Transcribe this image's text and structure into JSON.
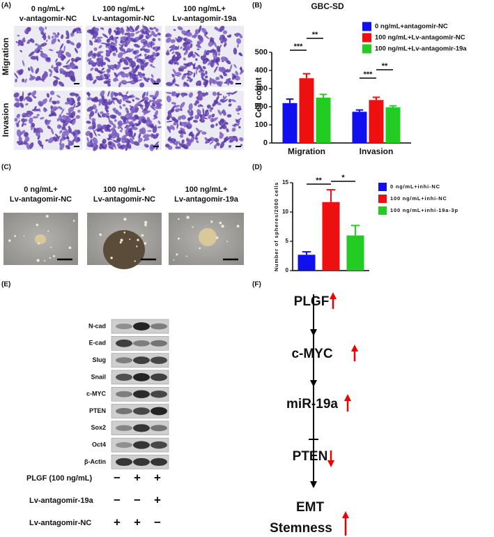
{
  "panel_labels": [
    "(A)",
    "(B)",
    "(C)",
    "(D)",
    "(E)",
    "(F)"
  ],
  "panel_a": {
    "columns": [
      [
        "0 ng/mL+",
        "v-antagomir-NC"
      ],
      [
        "100 ng/mL+",
        "Lv-antagomir-NC"
      ],
      [
        "100 ng/mL+",
        "Lv-antagomir-19a"
      ]
    ],
    "rows": [
      "Migration",
      "Invasion"
    ]
  },
  "panel_c": {
    "columns": [
      [
        "0 ng/mL+",
        "Lv-antagomir-NC"
      ],
      [
        "100 ng/mL+",
        "Lv-antagomir-NC"
      ],
      [
        "100 ng/mL+",
        "Lv-antagomir-19a"
      ]
    ]
  },
  "panel_e": {
    "proteins": [
      "N-cad",
      "E-cad",
      "Slug",
      "Snail",
      "c-MYC",
      "PTEN",
      "Sox2",
      "Oct4",
      "β-Actin"
    ],
    "conditions": [
      {
        "name": "PLGF (100 ng/mL)",
        "signs": [
          "−",
          "+",
          "+"
        ]
      },
      {
        "name": "Lv-antagomir-19a",
        "signs": [
          "−",
          "−",
          "+"
        ]
      },
      {
        "name": "Lv-antagomir-NC",
        "signs": [
          "+",
          "+",
          "−"
        ]
      }
    ]
  },
  "panel_f": {
    "nodes": [
      "PLGF",
      "c-MYC",
      "miR-19a",
      "PTEN",
      "EMT",
      "Stemness"
    ]
  },
  "chart_data": [
    {
      "type": "bar",
      "title": "GBC-SD",
      "ylabel": "Cell count",
      "categories": [
        "Migration",
        "Invasion"
      ],
      "series": [
        {
          "name": "0 ng/mL+antagomir-NC",
          "color": "#1010ee",
          "values": [
            220,
            172
          ],
          "errors": [
            22,
            10
          ]
        },
        {
          "name": "100 ng/mL+Lv-antagomir-NC",
          "color": "#ee1010",
          "values": [
            357,
            237
          ],
          "errors": [
            25,
            15
          ]
        },
        {
          "name": "100 ng/mL+Lv-antagomir-19a",
          "color": "#22cc22",
          "values": [
            250,
            197
          ],
          "errors": [
            18,
            8
          ]
        }
      ],
      "ylim": [
        0,
        500
      ],
      "yticks": [
        0,
        100,
        200,
        300,
        400,
        500
      ],
      "annotations": [
        "***",
        "**",
        "***",
        "**"
      ],
      "legend": "upper right"
    },
    {
      "type": "bar",
      "ylabel": "Number of spheres/2000 cells",
      "categories": [
        null
      ],
      "series": [
        {
          "name": "0 ng/mL+inhi-NC",
          "color": "#1010ee",
          "values": [
            2.7
          ],
          "errors": [
            0.5
          ]
        },
        {
          "name": "100 ng/mL+inhi-NC",
          "color": "#ee1010",
          "values": [
            11.7
          ],
          "errors": [
            2.1
          ]
        },
        {
          "name": "100 ng/mL+inhi-19a-3p",
          "color": "#22cc22",
          "values": [
            6.0
          ],
          "errors": [
            1.7
          ]
        }
      ],
      "ylim": [
        0,
        15
      ],
      "yticks": [
        0,
        5,
        10,
        15
      ],
      "annotations": [
        "**",
        "*"
      ],
      "legend": "upper right"
    }
  ]
}
